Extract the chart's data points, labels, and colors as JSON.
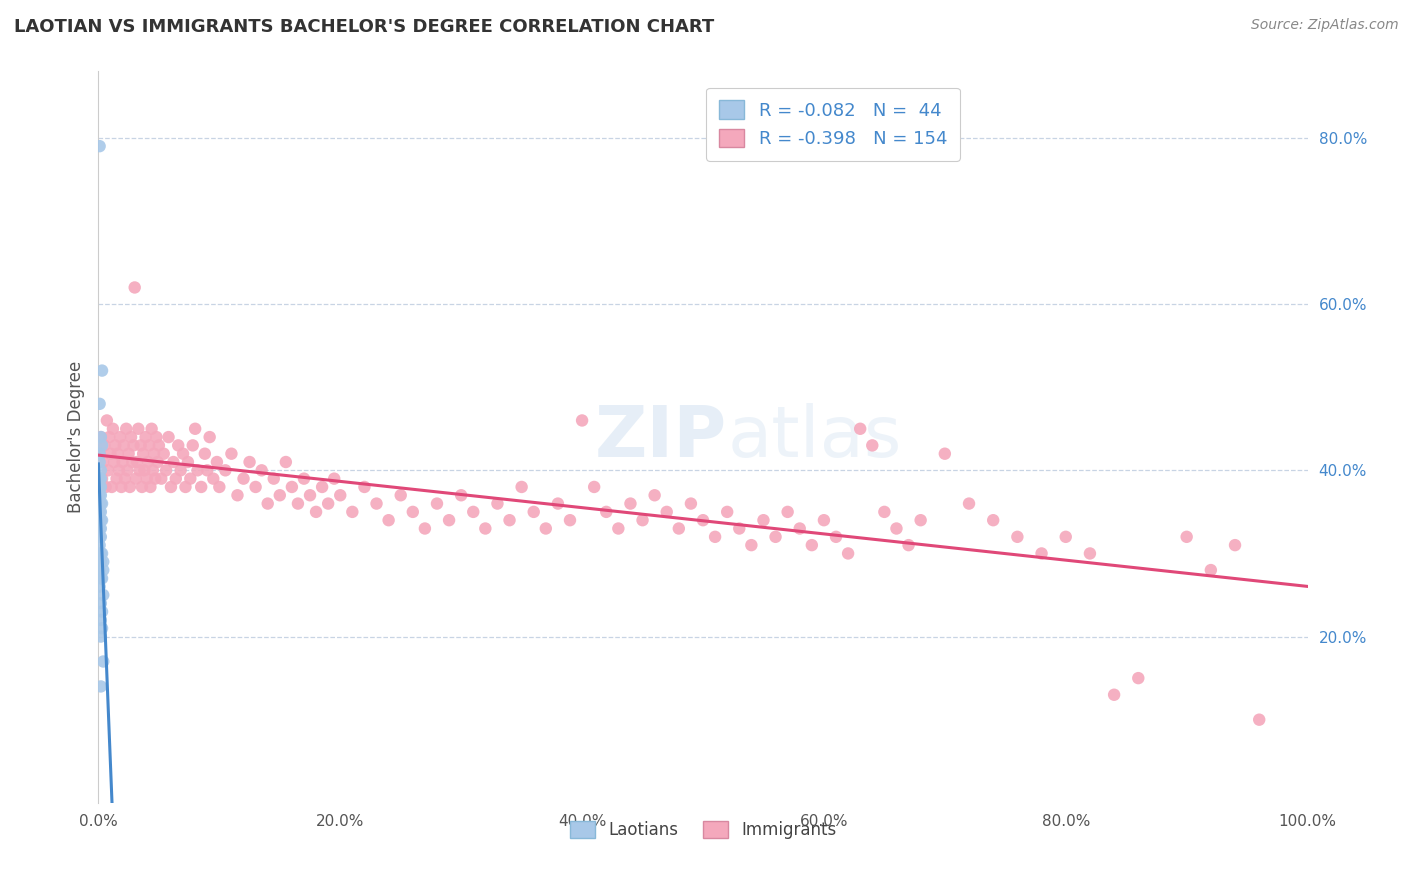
{
  "title": "LAOTIAN VS IMMIGRANTS BACHELOR'S DEGREE CORRELATION CHART",
  "source": "Source: ZipAtlas.com",
  "ylabel": "Bachelor's Degree",
  "laotian_R": -0.082,
  "laotian_N": 44,
  "immigrants_R": -0.398,
  "immigrants_N": 154,
  "laotian_color": "#a8c8e8",
  "immigrants_color": "#f4a8bc",
  "laotian_line_color": "#4488cc",
  "immigrants_line_color": "#e04878",
  "dashed_line_color": "#88a8cc",
  "title_color": "#333333",
  "source_color": "#888888",
  "axis_label_color": "#4488cc",
  "legend_text_color": "#4488cc",
  "grid_color": "#c8d4e4",
  "background_color": "#ffffff",
  "laotian_points": [
    [
      0.001,
      0.79
    ],
    [
      0.003,
      0.52
    ],
    [
      0.001,
      0.48
    ],
    [
      0.002,
      0.44
    ],
    [
      0.003,
      0.43
    ],
    [
      0.001,
      0.42
    ],
    [
      0.001,
      0.41
    ],
    [
      0.002,
      0.4
    ],
    [
      0.001,
      0.39
    ],
    [
      0.002,
      0.39
    ],
    [
      0.001,
      0.38
    ],
    [
      0.002,
      0.38
    ],
    [
      0.001,
      0.37
    ],
    [
      0.002,
      0.37
    ],
    [
      0.002,
      0.36
    ],
    [
      0.003,
      0.36
    ],
    [
      0.001,
      0.35
    ],
    [
      0.002,
      0.35
    ],
    [
      0.001,
      0.34
    ],
    [
      0.002,
      0.34
    ],
    [
      0.003,
      0.34
    ],
    [
      0.001,
      0.33
    ],
    [
      0.002,
      0.33
    ],
    [
      0.001,
      0.32
    ],
    [
      0.002,
      0.32
    ],
    [
      0.001,
      0.31
    ],
    [
      0.002,
      0.3
    ],
    [
      0.003,
      0.3
    ],
    [
      0.001,
      0.29
    ],
    [
      0.002,
      0.29
    ],
    [
      0.004,
      0.29
    ],
    [
      0.001,
      0.28
    ],
    [
      0.004,
      0.28
    ],
    [
      0.002,
      0.27
    ],
    [
      0.003,
      0.27
    ],
    [
      0.001,
      0.26
    ],
    [
      0.004,
      0.25
    ],
    [
      0.002,
      0.24
    ],
    [
      0.003,
      0.23
    ],
    [
      0.002,
      0.22
    ],
    [
      0.003,
      0.21
    ],
    [
      0.002,
      0.2
    ],
    [
      0.004,
      0.17
    ],
    [
      0.002,
      0.14
    ]
  ],
  "immigrants_points": [
    [
      0.001,
      0.42
    ],
    [
      0.002,
      0.44
    ],
    [
      0.003,
      0.39
    ],
    [
      0.004,
      0.41
    ],
    [
      0.005,
      0.43
    ],
    [
      0.006,
      0.38
    ],
    [
      0.007,
      0.46
    ],
    [
      0.008,
      0.4
    ],
    [
      0.009,
      0.44
    ],
    [
      0.01,
      0.42
    ],
    [
      0.011,
      0.38
    ],
    [
      0.012,
      0.45
    ],
    [
      0.013,
      0.41
    ],
    [
      0.014,
      0.43
    ],
    [
      0.015,
      0.39
    ],
    [
      0.016,
      0.42
    ],
    [
      0.017,
      0.4
    ],
    [
      0.018,
      0.44
    ],
    [
      0.019,
      0.38
    ],
    [
      0.02,
      0.41
    ],
    [
      0.021,
      0.43
    ],
    [
      0.022,
      0.39
    ],
    [
      0.023,
      0.45
    ],
    [
      0.024,
      0.4
    ],
    [
      0.025,
      0.42
    ],
    [
      0.026,
      0.38
    ],
    [
      0.027,
      0.44
    ],
    [
      0.028,
      0.41
    ],
    [
      0.029,
      0.43
    ],
    [
      0.03,
      0.62
    ],
    [
      0.031,
      0.39
    ],
    [
      0.032,
      0.41
    ],
    [
      0.033,
      0.45
    ],
    [
      0.034,
      0.4
    ],
    [
      0.035,
      0.43
    ],
    [
      0.036,
      0.38
    ],
    [
      0.037,
      0.42
    ],
    [
      0.038,
      0.4
    ],
    [
      0.039,
      0.44
    ],
    [
      0.04,
      0.39
    ],
    [
      0.041,
      0.41
    ],
    [
      0.042,
      0.43
    ],
    [
      0.043,
      0.38
    ],
    [
      0.044,
      0.45
    ],
    [
      0.045,
      0.4
    ],
    [
      0.046,
      0.42
    ],
    [
      0.047,
      0.39
    ],
    [
      0.048,
      0.44
    ],
    [
      0.049,
      0.41
    ],
    [
      0.05,
      0.43
    ],
    [
      0.052,
      0.39
    ],
    [
      0.054,
      0.42
    ],
    [
      0.056,
      0.4
    ],
    [
      0.058,
      0.44
    ],
    [
      0.06,
      0.38
    ],
    [
      0.062,
      0.41
    ],
    [
      0.064,
      0.39
    ],
    [
      0.066,
      0.43
    ],
    [
      0.068,
      0.4
    ],
    [
      0.07,
      0.42
    ],
    [
      0.072,
      0.38
    ],
    [
      0.074,
      0.41
    ],
    [
      0.076,
      0.39
    ],
    [
      0.078,
      0.43
    ],
    [
      0.08,
      0.45
    ],
    [
      0.082,
      0.4
    ],
    [
      0.085,
      0.38
    ],
    [
      0.088,
      0.42
    ],
    [
      0.09,
      0.4
    ],
    [
      0.092,
      0.44
    ],
    [
      0.095,
      0.39
    ],
    [
      0.098,
      0.41
    ],
    [
      0.1,
      0.38
    ],
    [
      0.105,
      0.4
    ],
    [
      0.11,
      0.42
    ],
    [
      0.115,
      0.37
    ],
    [
      0.12,
      0.39
    ],
    [
      0.125,
      0.41
    ],
    [
      0.13,
      0.38
    ],
    [
      0.135,
      0.4
    ],
    [
      0.14,
      0.36
    ],
    [
      0.145,
      0.39
    ],
    [
      0.15,
      0.37
    ],
    [
      0.155,
      0.41
    ],
    [
      0.16,
      0.38
    ],
    [
      0.165,
      0.36
    ],
    [
      0.17,
      0.39
    ],
    [
      0.175,
      0.37
    ],
    [
      0.18,
      0.35
    ],
    [
      0.185,
      0.38
    ],
    [
      0.19,
      0.36
    ],
    [
      0.195,
      0.39
    ],
    [
      0.2,
      0.37
    ],
    [
      0.21,
      0.35
    ],
    [
      0.22,
      0.38
    ],
    [
      0.23,
      0.36
    ],
    [
      0.24,
      0.34
    ],
    [
      0.25,
      0.37
    ],
    [
      0.26,
      0.35
    ],
    [
      0.27,
      0.33
    ],
    [
      0.28,
      0.36
    ],
    [
      0.29,
      0.34
    ],
    [
      0.3,
      0.37
    ],
    [
      0.31,
      0.35
    ],
    [
      0.32,
      0.33
    ],
    [
      0.33,
      0.36
    ],
    [
      0.34,
      0.34
    ],
    [
      0.35,
      0.38
    ],
    [
      0.36,
      0.35
    ],
    [
      0.37,
      0.33
    ],
    [
      0.38,
      0.36
    ],
    [
      0.39,
      0.34
    ],
    [
      0.4,
      0.46
    ],
    [
      0.41,
      0.38
    ],
    [
      0.42,
      0.35
    ],
    [
      0.43,
      0.33
    ],
    [
      0.44,
      0.36
    ],
    [
      0.45,
      0.34
    ],
    [
      0.46,
      0.37
    ],
    [
      0.47,
      0.35
    ],
    [
      0.48,
      0.33
    ],
    [
      0.49,
      0.36
    ],
    [
      0.5,
      0.34
    ],
    [
      0.51,
      0.32
    ],
    [
      0.52,
      0.35
    ],
    [
      0.53,
      0.33
    ],
    [
      0.54,
      0.31
    ],
    [
      0.55,
      0.34
    ],
    [
      0.56,
      0.32
    ],
    [
      0.57,
      0.35
    ],
    [
      0.58,
      0.33
    ],
    [
      0.59,
      0.31
    ],
    [
      0.6,
      0.34
    ],
    [
      0.61,
      0.32
    ],
    [
      0.62,
      0.3
    ],
    [
      0.63,
      0.45
    ],
    [
      0.64,
      0.43
    ],
    [
      0.65,
      0.35
    ],
    [
      0.66,
      0.33
    ],
    [
      0.67,
      0.31
    ],
    [
      0.68,
      0.34
    ],
    [
      0.7,
      0.42
    ],
    [
      0.72,
      0.36
    ],
    [
      0.74,
      0.34
    ],
    [
      0.76,
      0.32
    ],
    [
      0.78,
      0.3
    ],
    [
      0.8,
      0.32
    ],
    [
      0.82,
      0.3
    ],
    [
      0.84,
      0.13
    ],
    [
      0.86,
      0.15
    ],
    [
      0.9,
      0.32
    ],
    [
      0.92,
      0.28
    ],
    [
      0.94,
      0.31
    ],
    [
      0.96,
      0.1
    ]
  ],
  "xlim": [
    0.0,
    1.0
  ],
  "ylim": [
    0.0,
    0.88
  ],
  "xtick_positions": [
    0.0,
    0.2,
    0.4,
    0.6,
    0.8,
    1.0
  ],
  "xtick_labels": [
    "0.0%",
    "20.0%",
    "40.0%",
    "60.0%",
    "80.0%",
    "100.0%"
  ],
  "ytick_positions": [
    0.2,
    0.4,
    0.6,
    0.8
  ],
  "ytick_labels": [
    "20.0%",
    "40.0%",
    "60.0%",
    "80.0%"
  ]
}
